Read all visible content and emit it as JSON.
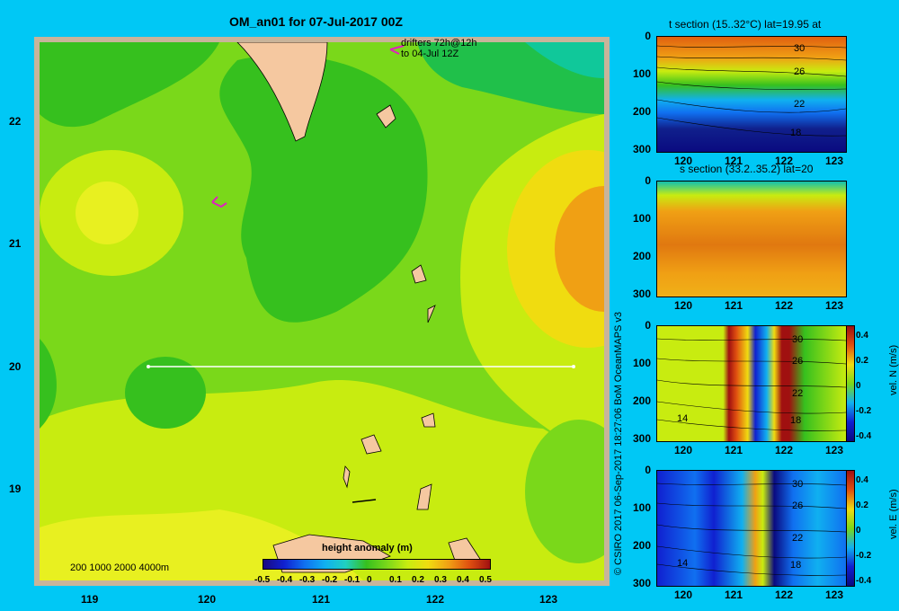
{
  "title": "OM_an01 for 07-Jul-2017 00Z",
  "map": {
    "lat_labels": [
      "22",
      "21",
      "20",
      "19"
    ],
    "lon_labels": [
      "119",
      "120",
      "121",
      "122",
      "123"
    ],
    "drifter_note_line1": "drifters 72h@12h",
    "drifter_note_line2": "to 04-Jul 12Z",
    "scale_note": "200  1000  2000  4000m",
    "colorbar_title": "height anomaly (m)",
    "colorbar_ticks": [
      "-0.5",
      "-0.4",
      "-0.3",
      "-0.2",
      "-0.1",
      "0",
      "0.1",
      "0.2",
      "0.3",
      "0.4",
      "0.5"
    ],
    "section_line": {
      "lat": 20,
      "lon_start": 119.5,
      "lon_end": 123.2
    }
  },
  "credit": "© CSIRO 2017   06-Sep-2017 18:27:06 BoM OceanMAPS v3",
  "panels": [
    {
      "title": "t section (15..32°C) lat=19.95 at",
      "contour_labels": [
        "30",
        "26",
        "22",
        "18"
      ],
      "side_label": ""
    },
    {
      "title": "s section (33.2..35.2) lat=20",
      "contour_labels": [],
      "side_label": ""
    },
    {
      "title": "",
      "contour_labels": [
        "30",
        "26",
        "22",
        "18",
        "14"
      ],
      "side_label": "vel. N  (m/s)"
    },
    {
      "title": "",
      "contour_labels": [
        "30",
        "26",
        "22",
        "18",
        "14"
      ],
      "side_label": "vel. E  (m/s)"
    }
  ],
  "section_axes": {
    "depth_ticks": [
      "0",
      "100",
      "200",
      "300"
    ],
    "lon_ticks": [
      "120",
      "121",
      "122",
      "123"
    ]
  },
  "vel_colorbar_ticks": [
    "0.4",
    "0.2",
    "0",
    "-0.2",
    "-0.4"
  ],
  "colors": {
    "background": "#00c8f5",
    "land": "#f5c8a0",
    "section_line": "#ffffff",
    "drifter": "#e020c0"
  }
}
